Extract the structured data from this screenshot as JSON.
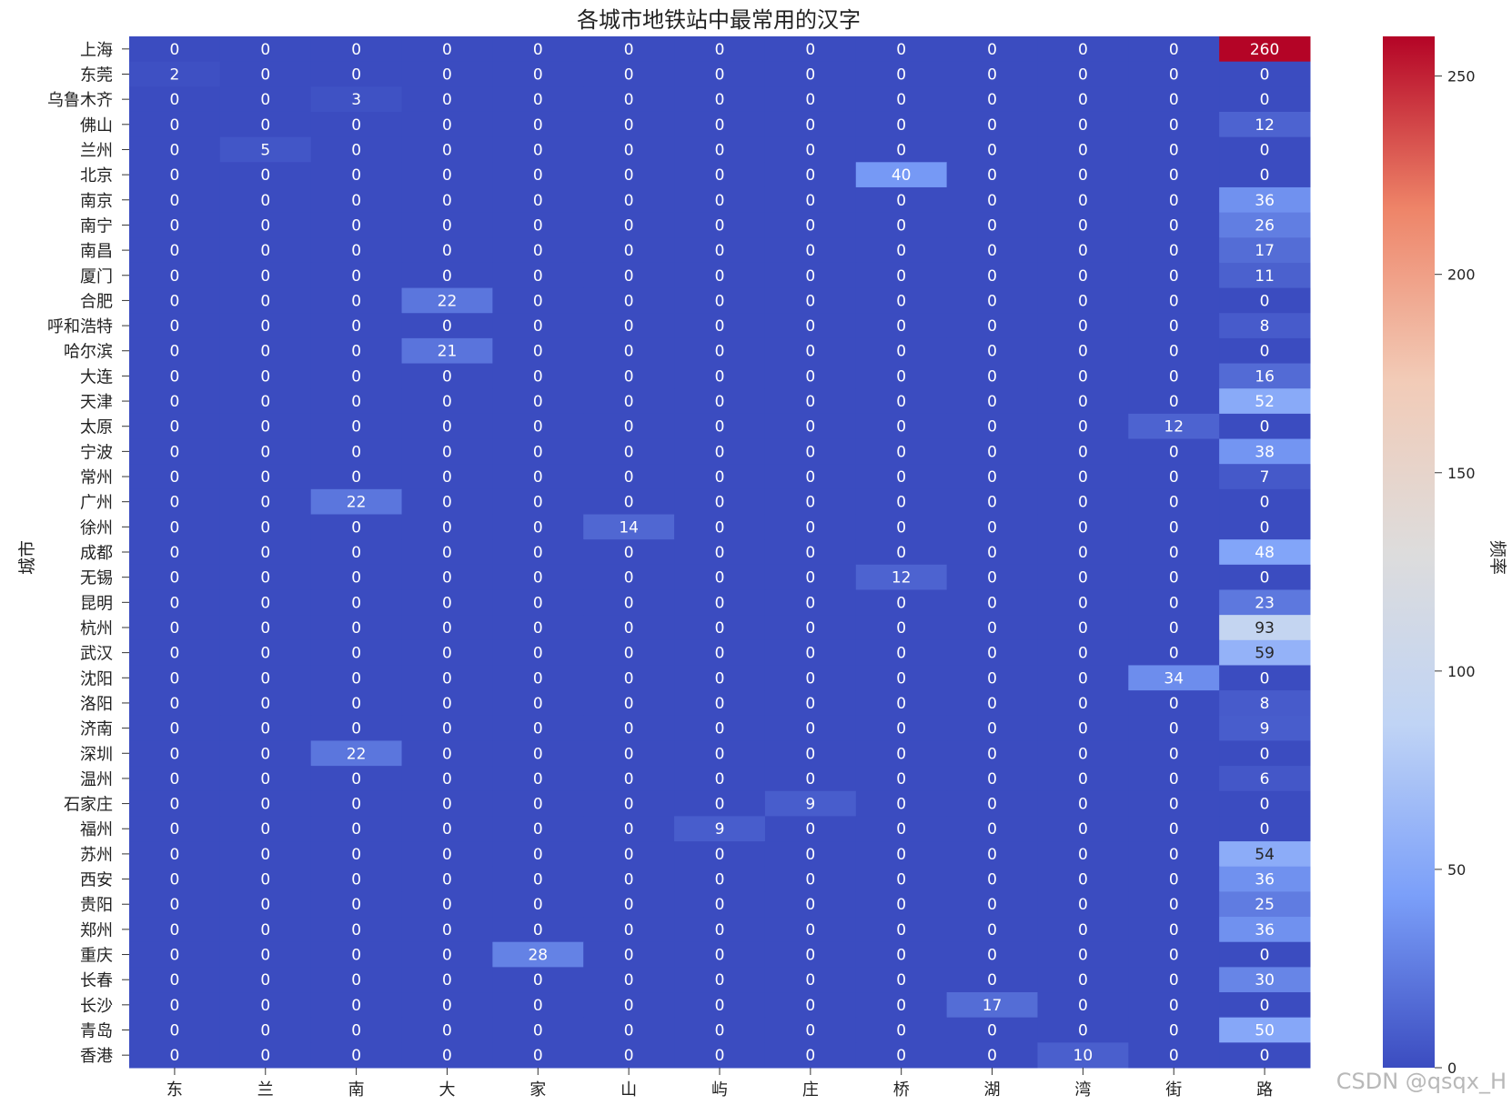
{
  "chart_data": {
    "type": "heatmap",
    "title": "各城市地铁站中最常用的汉字",
    "xlabel": "",
    "ylabel": "城市",
    "colorbar_label": "频率",
    "colormap": "coolwarm",
    "colormap_stops": [
      "#3b4cc0",
      "#7b9ff9",
      "#c0d4f5",
      "#dddcdc",
      "#f2cbb7",
      "#ee8468",
      "#b40426"
    ],
    "vmin": 0,
    "vmax": 260,
    "colorbar_ticks": [
      "0",
      "50",
      "100",
      "150",
      "200",
      "250"
    ],
    "x_categories": [
      "东",
      "兰",
      "南",
      "大",
      "家",
      "山",
      "屿",
      "庄",
      "桥",
      "湖",
      "湾",
      "街",
      "路"
    ],
    "y_categories": [
      "上海",
      "东莞",
      "乌鲁木齐",
      "佛山",
      "兰州",
      "北京",
      "南京",
      "南宁",
      "南昌",
      "厦门",
      "合肥",
      "呼和浩特",
      "哈尔滨",
      "大连",
      "天津",
      "太原",
      "宁波",
      "常州",
      "广州",
      "徐州",
      "成都",
      "无锡",
      "昆明",
      "杭州",
      "武汉",
      "沈阳",
      "洛阳",
      "济南",
      "深圳",
      "温州",
      "石家庄",
      "福州",
      "苏州",
      "西安",
      "贵阳",
      "郑州",
      "重庆",
      "长春",
      "长沙",
      "青岛",
      "香港"
    ],
    "values": [
      [
        0,
        0,
        0,
        0,
        0,
        0,
        0,
        0,
        0,
        0,
        0,
        0,
        260
      ],
      [
        2,
        0,
        0,
        0,
        0,
        0,
        0,
        0,
        0,
        0,
        0,
        0,
        0
      ],
      [
        0,
        0,
        3,
        0,
        0,
        0,
        0,
        0,
        0,
        0,
        0,
        0,
        0
      ],
      [
        0,
        0,
        0,
        0,
        0,
        0,
        0,
        0,
        0,
        0,
        0,
        0,
        12
      ],
      [
        0,
        5,
        0,
        0,
        0,
        0,
        0,
        0,
        0,
        0,
        0,
        0,
        0
      ],
      [
        0,
        0,
        0,
        0,
        0,
        0,
        0,
        0,
        40,
        0,
        0,
        0,
        0
      ],
      [
        0,
        0,
        0,
        0,
        0,
        0,
        0,
        0,
        0,
        0,
        0,
        0,
        36
      ],
      [
        0,
        0,
        0,
        0,
        0,
        0,
        0,
        0,
        0,
        0,
        0,
        0,
        26
      ],
      [
        0,
        0,
        0,
        0,
        0,
        0,
        0,
        0,
        0,
        0,
        0,
        0,
        17
      ],
      [
        0,
        0,
        0,
        0,
        0,
        0,
        0,
        0,
        0,
        0,
        0,
        0,
        11
      ],
      [
        0,
        0,
        0,
        22,
        0,
        0,
        0,
        0,
        0,
        0,
        0,
        0,
        0
      ],
      [
        0,
        0,
        0,
        0,
        0,
        0,
        0,
        0,
        0,
        0,
        0,
        0,
        8
      ],
      [
        0,
        0,
        0,
        21,
        0,
        0,
        0,
        0,
        0,
        0,
        0,
        0,
        0
      ],
      [
        0,
        0,
        0,
        0,
        0,
        0,
        0,
        0,
        0,
        0,
        0,
        0,
        16
      ],
      [
        0,
        0,
        0,
        0,
        0,
        0,
        0,
        0,
        0,
        0,
        0,
        0,
        52
      ],
      [
        0,
        0,
        0,
        0,
        0,
        0,
        0,
        0,
        0,
        0,
        0,
        12,
        0
      ],
      [
        0,
        0,
        0,
        0,
        0,
        0,
        0,
        0,
        0,
        0,
        0,
        0,
        38
      ],
      [
        0,
        0,
        0,
        0,
        0,
        0,
        0,
        0,
        0,
        0,
        0,
        0,
        7
      ],
      [
        0,
        0,
        22,
        0,
        0,
        0,
        0,
        0,
        0,
        0,
        0,
        0,
        0
      ],
      [
        0,
        0,
        0,
        0,
        0,
        14,
        0,
        0,
        0,
        0,
        0,
        0,
        0
      ],
      [
        0,
        0,
        0,
        0,
        0,
        0,
        0,
        0,
        0,
        0,
        0,
        0,
        48
      ],
      [
        0,
        0,
        0,
        0,
        0,
        0,
        0,
        0,
        12,
        0,
        0,
        0,
        0
      ],
      [
        0,
        0,
        0,
        0,
        0,
        0,
        0,
        0,
        0,
        0,
        0,
        0,
        23
      ],
      [
        0,
        0,
        0,
        0,
        0,
        0,
        0,
        0,
        0,
        0,
        0,
        0,
        93
      ],
      [
        0,
        0,
        0,
        0,
        0,
        0,
        0,
        0,
        0,
        0,
        0,
        0,
        59
      ],
      [
        0,
        0,
        0,
        0,
        0,
        0,
        0,
        0,
        0,
        0,
        0,
        34,
        0
      ],
      [
        0,
        0,
        0,
        0,
        0,
        0,
        0,
        0,
        0,
        0,
        0,
        0,
        8
      ],
      [
        0,
        0,
        0,
        0,
        0,
        0,
        0,
        0,
        0,
        0,
        0,
        0,
        9
      ],
      [
        0,
        0,
        22,
        0,
        0,
        0,
        0,
        0,
        0,
        0,
        0,
        0,
        0
      ],
      [
        0,
        0,
        0,
        0,
        0,
        0,
        0,
        0,
        0,
        0,
        0,
        0,
        6
      ],
      [
        0,
        0,
        0,
        0,
        0,
        0,
        0,
        9,
        0,
        0,
        0,
        0,
        0
      ],
      [
        0,
        0,
        0,
        0,
        0,
        0,
        9,
        0,
        0,
        0,
        0,
        0,
        0
      ],
      [
        0,
        0,
        0,
        0,
        0,
        0,
        0,
        0,
        0,
        0,
        0,
        0,
        54
      ],
      [
        0,
        0,
        0,
        0,
        0,
        0,
        0,
        0,
        0,
        0,
        0,
        0,
        36
      ],
      [
        0,
        0,
        0,
        0,
        0,
        0,
        0,
        0,
        0,
        0,
        0,
        0,
        25
      ],
      [
        0,
        0,
        0,
        0,
        0,
        0,
        0,
        0,
        0,
        0,
        0,
        0,
        36
      ],
      [
        0,
        0,
        0,
        0,
        28,
        0,
        0,
        0,
        0,
        0,
        0,
        0,
        0
      ],
      [
        0,
        0,
        0,
        0,
        0,
        0,
        0,
        0,
        0,
        0,
        0,
        0,
        30
      ],
      [
        0,
        0,
        0,
        0,
        0,
        0,
        0,
        0,
        0,
        17,
        0,
        0,
        0
      ],
      [
        0,
        0,
        0,
        0,
        0,
        0,
        0,
        0,
        0,
        0,
        0,
        0,
        50
      ],
      [
        0,
        0,
        0,
        0,
        0,
        0,
        0,
        0,
        0,
        0,
        10,
        0,
        0
      ]
    ],
    "grid": false
  },
  "watermark": "CSDN @qsqx_H"
}
